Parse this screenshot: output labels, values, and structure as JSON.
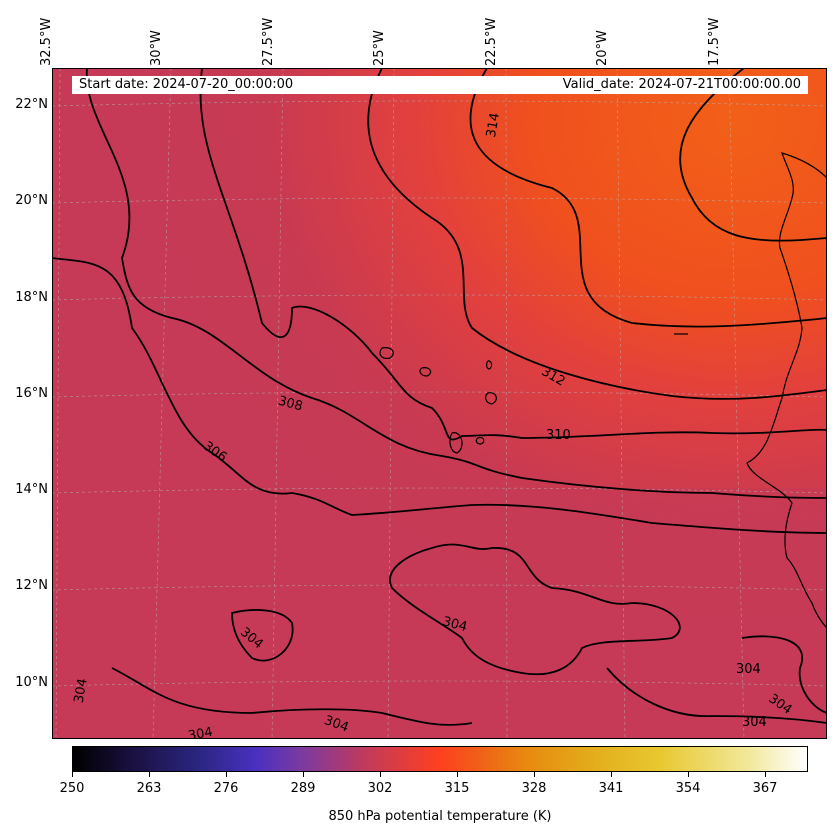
{
  "longitude_labels": [
    "32.5°W",
    "30°W",
    "27.5°W",
    "25°W",
    "22.5°W",
    "20°W",
    "17.5°W"
  ],
  "latitude_labels": [
    "22°N",
    "20°N",
    "18°N",
    "16°N",
    "14°N",
    "12°N",
    "10°N"
  ],
  "banner": {
    "start": "Start date: 2024-07-20_00:00:00",
    "valid": "Valid_date: 2024-07-21T00:00:00.00"
  },
  "contour_labels": [
    "314",
    "312",
    "310",
    "308",
    "306",
    "304",
    "304",
    "304",
    "304",
    "304",
    "304",
    "304",
    "304"
  ],
  "colorbar": {
    "ticks": [
      "250",
      "263",
      "276",
      "289",
      "302",
      "315",
      "328",
      "341",
      "354",
      "367"
    ],
    "title": "850 hPa potential temperature (K)"
  },
  "colors": {
    "field_low": "#c63a57",
    "field_mid": "#e2403d",
    "field_high": "#f26018",
    "contour": "#000000",
    "coast": "#000000"
  }
}
